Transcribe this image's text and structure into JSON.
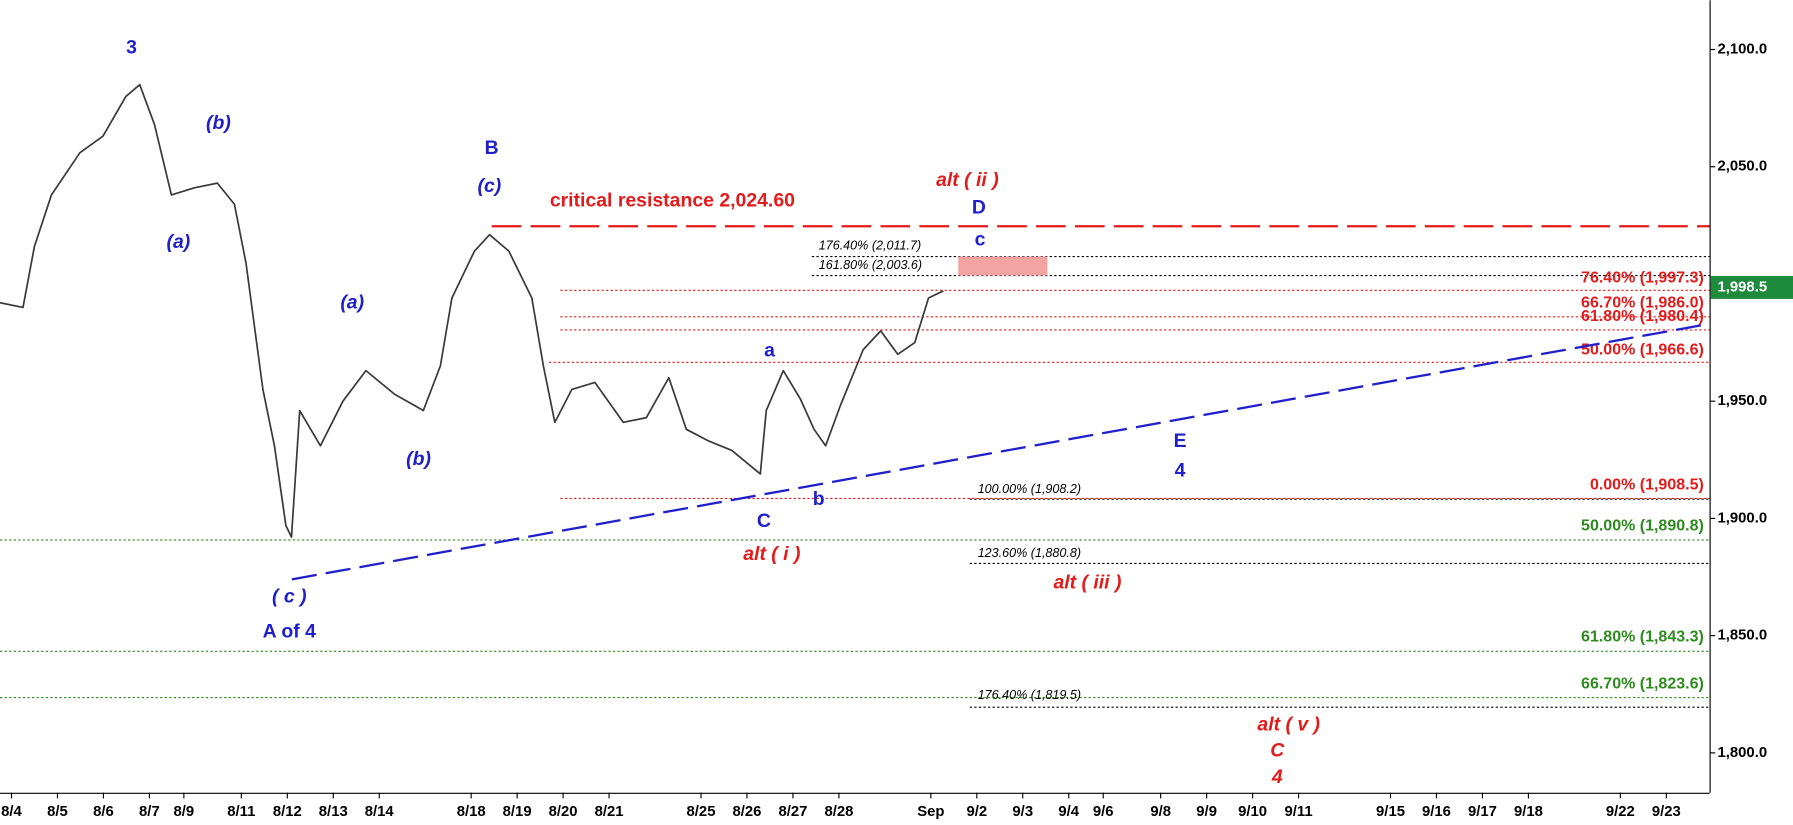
{
  "chart_data": {
    "type": "line",
    "color": "#3a3a3a",
    "x": [
      -0.25,
      0.25,
      0.5,
      0.87,
      1.49,
      1.99,
      2.49,
      2.79,
      3.11,
      3.48,
      3.98,
      4.48,
      4.85,
      5.1,
      5.47,
      5.72,
      5.97,
      6.09,
      6.27,
      6.72,
      7.21,
      7.71,
      8.33,
      8.96,
      9.33,
      9.58,
      10.07,
      10.4,
      10.82,
      11.32,
      11.57,
      11.82,
      12.19,
      12.69,
      13.31,
      13.81,
      14.3,
      14.68,
      15.17,
      15.67,
      16.29,
      16.42,
      16.79,
      17.16,
      17.46,
      17.71,
      18.03,
      18.53,
      18.91,
      19.28,
      19.65,
      19.95,
      20.27
    ],
    "values": [
      1992,
      1990,
      2016,
      2038,
      2056,
      2063,
      2080,
      2085,
      2068,
      2038,
      2041,
      2043,
      2034,
      2009,
      1955,
      1931,
      1897,
      1892,
      1946,
      1931,
      1950,
      1963,
      1953,
      1946,
      1965,
      1994,
      2014,
      2021,
      2014,
      1994,
      1965,
      1941,
      1955,
      1958,
      1941,
      1943,
      1960,
      1938,
      1933,
      1929,
      1919,
      1946,
      1963,
      1951,
      1938,
      1931,
      1948,
      1972,
      1980,
      1970,
      1975,
      1994,
      1997
    ],
    "xlim": [
      -0.25,
      36.94
    ],
    "ylim": [
      1783,
      2121
    ],
    "xticks": [
      {
        "value": 0,
        "label": "8/4"
      },
      {
        "value": 1,
        "label": "8/5"
      },
      {
        "value": 2,
        "label": "8/6"
      },
      {
        "value": 3,
        "label": "8/7"
      },
      {
        "value": 3.75,
        "label": "8/9"
      },
      {
        "value": 5,
        "label": "8/11"
      },
      {
        "value": 6,
        "label": "8/12"
      },
      {
        "value": 7,
        "label": "8/13"
      },
      {
        "value": 8,
        "label": "8/14"
      },
      {
        "value": 10,
        "label": "8/18"
      },
      {
        "value": 11,
        "label": "8/19"
      },
      {
        "value": 12,
        "label": "8/20"
      },
      {
        "value": 13,
        "label": "8/21"
      },
      {
        "value": 15,
        "label": "8/25"
      },
      {
        "value": 16,
        "label": "8/26"
      },
      {
        "value": 17,
        "label": "8/27"
      },
      {
        "value": 18,
        "label": "8/28"
      },
      {
        "value": 20,
        "label": "Sep"
      },
      {
        "value": 21,
        "label": "9/2"
      },
      {
        "value": 22,
        "label": "9/3"
      },
      {
        "value": 23,
        "label": "9/4"
      },
      {
        "value": 23.75,
        "label": "9/6"
      },
      {
        "value": 25,
        "label": "9/8"
      },
      {
        "value": 26,
        "label": "9/9"
      },
      {
        "value": 27,
        "label": "9/10"
      },
      {
        "value": 28,
        "label": "9/11"
      },
      {
        "value": 30,
        "label": "9/15"
      },
      {
        "value": 31,
        "label": "9/16"
      },
      {
        "value": 32,
        "label": "9/17"
      },
      {
        "value": 33,
        "label": "9/18"
      },
      {
        "value": 35,
        "label": "9/22"
      },
      {
        "value": 36,
        "label": "9/23"
      }
    ],
    "yticks": [
      {
        "value": 1800,
        "label": "1,800.0"
      },
      {
        "value": 1850,
        "label": "1,850.0"
      },
      {
        "value": 1900,
        "label": "1,900.0"
      },
      {
        "value": 1950,
        "label": "1,950.0"
      },
      {
        "value": 2000,
        "label": "2,000.0"
      },
      {
        "value": 2050,
        "label": "2,050.0"
      },
      {
        "value": 2100,
        "label": "2,100.0"
      }
    ],
    "last_price": {
      "value": 1998.5,
      "label": "1,998.5",
      "color": "#1e8a3c"
    },
    "levels": [
      {
        "value": 2024.6,
        "label": "critical resistance 2,024.60",
        "color": "#e31b1b",
        "style": "dashed"
      },
      {
        "value": 2011.7,
        "label": "176.40% (2,011.7)",
        "color": "#000000",
        "style": "dotted"
      },
      {
        "value": 2003.6,
        "label": "161.80% (2,003.6)",
        "color": "#000000",
        "style": "dotted"
      },
      {
        "value": 1997.3,
        "label": "76.40% (1,997.3)",
        "color": "#e31b1b",
        "style": "dotted"
      },
      {
        "value": 1986.0,
        "label": "66.70% (1,986.0)",
        "color": "#e31b1b",
        "style": "dotted"
      },
      {
        "value": 1980.4,
        "label": "61.80% (1,980.4)",
        "color": "#e31b1b",
        "style": "dotted"
      },
      {
        "value": 1966.6,
        "label": "50.00% (1,966.6)",
        "color": "#e31b1b",
        "style": "dotted"
      },
      {
        "value": 1908.5,
        "label": "0.00% (1,908.5)",
        "color": "#e31b1b",
        "style": "dotted"
      },
      {
        "value": 1908.2,
        "label": "100.00% (1,908.2)",
        "color": "#000000",
        "style": "dotted"
      },
      {
        "value": 1890.8,
        "label": "50.00% (1,890.8)",
        "color": "#2e8b1e",
        "style": "dotted"
      },
      {
        "value": 1880.8,
        "label": "123.60% (1,880.8)",
        "color": "#000000",
        "style": "dotted"
      },
      {
        "value": 1843.3,
        "label": "61.80% (1,843.3)",
        "color": "#2e8b1e",
        "style": "dotted"
      },
      {
        "value": 1823.6,
        "label": "66.70% (1,823.6)",
        "color": "#2e8b1e",
        "style": "dotted"
      },
      {
        "value": 1819.5,
        "label": "176.40% (1,819.5)",
        "color": "#000000",
        "style": "dotted"
      }
    ],
    "trendline": {
      "x": [
        6.1,
        36.94
      ],
      "values": [
        1874,
        1983
      ],
      "color": "#1f1fcc"
    },
    "zone_color": "#f4a3a3",
    "annotations": [
      {
        "text": "3",
        "color": "#1f1fcc",
        "style": "normal"
      },
      {
        "text": "(b)",
        "color": "#1f1fcc",
        "style": "italic"
      },
      {
        "text": "(a)",
        "color": "#1f1fcc",
        "style": "italic"
      },
      {
        "text": "B",
        "color": "#1f1fcc",
        "style": "normal"
      },
      {
        "text": "(c)",
        "color": "#1f1fcc",
        "style": "italic"
      },
      {
        "text": "(a)",
        "color": "#1f1fcc",
        "style": "italic"
      },
      {
        "text": "(b)",
        "color": "#1f1fcc",
        "style": "italic"
      },
      {
        "text": "( c )",
        "color": "#1f1fcc",
        "style": "italic"
      },
      {
        "text": "A of 4",
        "color": "#1f1fcc",
        "style": "normal"
      },
      {
        "text": "alt ( ii )",
        "color": "#e31b1b",
        "style": "italic"
      },
      {
        "text": "D",
        "color": "#1f1fcc",
        "style": "normal"
      },
      {
        "text": "c",
        "color": "#1f1fcc",
        "style": "normal"
      },
      {
        "text": "a",
        "color": "#1f1fcc",
        "style": "normal"
      },
      {
        "text": "b",
        "color": "#1f1fcc",
        "style": "normal"
      },
      {
        "text": "C",
        "color": "#1f1fcc",
        "style": "normal"
      },
      {
        "text": "alt ( i )",
        "color": "#e31b1b",
        "style": "italic"
      },
      {
        "text": "alt ( iii )",
        "color": "#e31b1b",
        "style": "italic"
      },
      {
        "text": "E",
        "color": "#1f1fcc",
        "style": "normal"
      },
      {
        "text": "4",
        "color": "#1f1fcc",
        "style": "normal"
      },
      {
        "text": "alt ( v )",
        "color": "#e31b1b",
        "style": "italic"
      },
      {
        "text": "C",
        "color": "#e31b1b",
        "style": "italic"
      },
      {
        "text": "4",
        "color": "#e31b1b",
        "style": "italic"
      }
    ]
  }
}
